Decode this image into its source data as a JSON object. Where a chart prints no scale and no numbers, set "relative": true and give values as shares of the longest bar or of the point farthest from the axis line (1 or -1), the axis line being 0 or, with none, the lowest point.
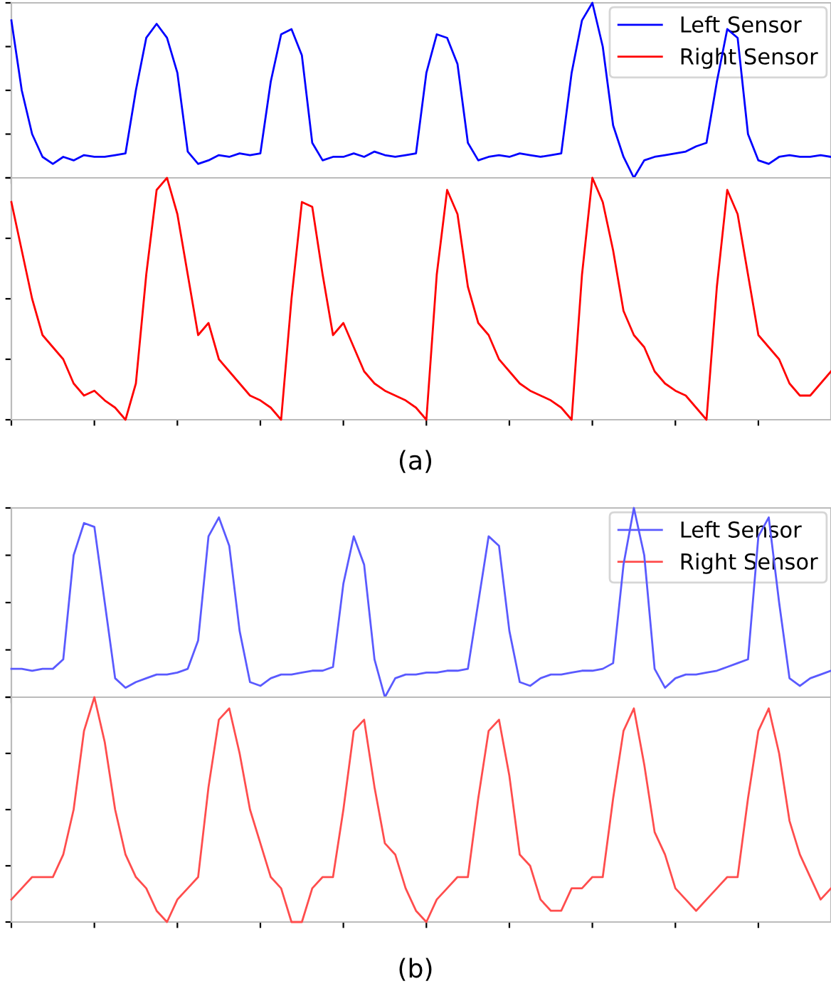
{
  "chart_data": [
    {
      "type": "line",
      "relative": true,
      "legend": "top right",
      "grid": false,
      "categories": [
        null,
        null,
        null,
        null,
        null,
        null,
        null,
        null,
        null,
        null,
        null,
        null,
        null,
        null,
        null,
        null,
        null,
        null,
        null,
        null,
        null,
        null,
        null,
        null,
        null,
        null,
        null,
        null,
        null,
        null,
        null,
        null,
        null,
        null,
        null,
        null,
        null,
        null,
        null,
        null,
        null,
        null,
        null,
        null,
        null,
        null,
        null,
        null,
        null,
        null,
        null,
        null,
        null,
        null,
        null,
        null,
        null,
        null,
        null,
        null,
        null,
        null,
        null,
        null,
        null,
        null,
        null,
        null,
        null,
        null,
        null,
        null,
        null,
        null,
        null,
        null,
        null,
        null,
        null,
        null
      ],
      "series": [
        {
          "name": "Left Sensor",
          "color": "#0000ff",
          "values": [
            0.9,
            0.5,
            0.25,
            0.12,
            0.08,
            0.12,
            0.1,
            0.13,
            0.12,
            0.12,
            0.13,
            0.14,
            0.5,
            0.8,
            0.88,
            0.8,
            0.6,
            0.15,
            0.08,
            0.1,
            0.13,
            0.12,
            0.14,
            0.13,
            0.14,
            0.55,
            0.82,
            0.85,
            0.7,
            0.2,
            0.1,
            0.12,
            0.12,
            0.14,
            0.12,
            0.15,
            0.13,
            0.12,
            0.13,
            0.14,
            0.6,
            0.82,
            0.8,
            0.65,
            0.2,
            0.1,
            0.12,
            0.13,
            0.12,
            0.14,
            0.13,
            0.12,
            0.13,
            0.14,
            0.6,
            0.9,
            1.0,
            0.75,
            0.3,
            0.12,
            0.0,
            0.1,
            0.12,
            0.13,
            0.14,
            0.15,
            0.18,
            0.2,
            0.55,
            0.85,
            0.8,
            0.25,
            0.1,
            0.08,
            0.12,
            0.13,
            0.12,
            0.12,
            0.13,
            0.12
          ]
        }
      ]
    },
    {
      "type": "line",
      "relative": true,
      "legend": "top",
      "grid": false,
      "annotations": [
        "(a)"
      ],
      "categories": [
        null,
        null,
        null,
        null,
        null,
        null,
        null,
        null,
        null,
        null,
        null,
        null,
        null,
        null,
        null,
        null,
        null,
        null,
        null,
        null,
        null,
        null,
        null,
        null,
        null,
        null,
        null,
        null,
        null,
        null,
        null,
        null,
        null,
        null,
        null,
        null,
        null,
        null,
        null,
        null,
        null,
        null,
        null,
        null,
        null,
        null,
        null,
        null,
        null,
        null,
        null,
        null,
        null,
        null,
        null,
        null,
        null,
        null,
        null,
        null,
        null,
        null,
        null,
        null,
        null,
        null,
        null,
        null,
        null,
        null,
        null,
        null,
        null,
        null,
        null,
        null,
        null,
        null,
        null,
        null
      ],
      "series": [
        {
          "name": "Right Sensor",
          "color": "#ff0000",
          "values": [
            0.9,
            0.7,
            0.5,
            0.35,
            0.3,
            0.25,
            0.15,
            0.1,
            0.12,
            0.08,
            0.05,
            0.0,
            0.15,
            0.6,
            0.95,
            1.0,
            0.85,
            0.6,
            0.35,
            0.4,
            0.25,
            0.2,
            0.15,
            0.1,
            0.08,
            0.05,
            0.0,
            0.5,
            0.9,
            0.88,
            0.6,
            0.35,
            0.4,
            0.3,
            0.2,
            0.15,
            0.12,
            0.1,
            0.08,
            0.05,
            0.0,
            0.6,
            0.95,
            0.85,
            0.55,
            0.4,
            0.35,
            0.25,
            0.2,
            0.15,
            0.12,
            0.1,
            0.08,
            0.05,
            0.0,
            0.6,
            1.0,
            0.9,
            0.7,
            0.45,
            0.35,
            0.3,
            0.2,
            0.15,
            0.12,
            0.1,
            0.05,
            0.0,
            0.55,
            0.95,
            0.85,
            0.6,
            0.35,
            0.3,
            0.25,
            0.15,
            0.1,
            0.1,
            0.15,
            0.2
          ]
        }
      ]
    },
    {
      "type": "line",
      "relative": true,
      "legend": "top right",
      "grid": false,
      "categories": [
        null,
        null,
        null,
        null,
        null,
        null,
        null,
        null,
        null,
        null,
        null,
        null,
        null,
        null,
        null,
        null,
        null,
        null,
        null,
        null,
        null,
        null,
        null,
        null,
        null,
        null,
        null,
        null,
        null,
        null,
        null,
        null,
        null,
        null,
        null,
        null,
        null,
        null,
        null,
        null,
        null,
        null,
        null,
        null,
        null,
        null,
        null,
        null,
        null,
        null,
        null,
        null,
        null,
        null,
        null,
        null,
        null,
        null,
        null,
        null,
        null,
        null,
        null,
        null,
        null,
        null,
        null,
        null,
        null,
        null,
        null,
        null,
        null,
        null,
        null,
        null,
        null,
        null,
        null,
        null
      ],
      "series": [
        {
          "name": "Left Sensor",
          "color": "#5a5aff",
          "values": [
            0.15,
            0.15,
            0.14,
            0.15,
            0.15,
            0.2,
            0.75,
            0.92,
            0.9,
            0.5,
            0.1,
            0.05,
            0.08,
            0.1,
            0.12,
            0.12,
            0.13,
            0.15,
            0.3,
            0.85,
            0.95,
            0.8,
            0.35,
            0.08,
            0.06,
            0.1,
            0.12,
            0.12,
            0.13,
            0.14,
            0.14,
            0.16,
            0.6,
            0.85,
            0.7,
            0.2,
            0.0,
            0.1,
            0.12,
            0.12,
            0.13,
            0.13,
            0.14,
            0.14,
            0.15,
            0.5,
            0.85,
            0.8,
            0.35,
            0.08,
            0.06,
            0.1,
            0.12,
            0.12,
            0.13,
            0.14,
            0.14,
            0.15,
            0.18,
            0.7,
            1.0,
            0.75,
            0.15,
            0.05,
            0.1,
            0.12,
            0.12,
            0.13,
            0.14,
            0.16,
            0.18,
            0.2,
            0.85,
            0.95,
            0.5,
            0.1,
            0.06,
            0.1,
            0.12,
            0.14
          ]
        }
      ]
    },
    {
      "type": "line",
      "relative": true,
      "legend": "top",
      "grid": false,
      "annotations": [
        "(b)"
      ],
      "categories": [
        null,
        null,
        null,
        null,
        null,
        null,
        null,
        null,
        null,
        null,
        null,
        null,
        null,
        null,
        null,
        null,
        null,
        null,
        null,
        null,
        null,
        null,
        null,
        null,
        null,
        null,
        null,
        null,
        null,
        null,
        null,
        null,
        null,
        null,
        null,
        null,
        null,
        null,
        null,
        null,
        null,
        null,
        null,
        null,
        null,
        null,
        null,
        null,
        null,
        null,
        null,
        null,
        null,
        null,
        null,
        null,
        null,
        null,
        null,
        null,
        null,
        null,
        null,
        null,
        null,
        null,
        null,
        null,
        null,
        null,
        null,
        null,
        null,
        null,
        null,
        null,
        null,
        null,
        null,
        null
      ],
      "series": [
        {
          "name": "Right Sensor",
          "color": "#ff4d4d",
          "values": [
            0.1,
            0.15,
            0.2,
            0.2,
            0.2,
            0.3,
            0.5,
            0.85,
            1.0,
            0.8,
            0.5,
            0.3,
            0.2,
            0.15,
            0.05,
            0.0,
            0.1,
            0.15,
            0.2,
            0.6,
            0.9,
            0.95,
            0.75,
            0.5,
            0.35,
            0.2,
            0.15,
            0.0,
            0.0,
            0.15,
            0.2,
            0.2,
            0.5,
            0.85,
            0.9,
            0.6,
            0.35,
            0.3,
            0.15,
            0.05,
            0.0,
            0.1,
            0.15,
            0.2,
            0.2,
            0.55,
            0.85,
            0.9,
            0.65,
            0.3,
            0.25,
            0.1,
            0.05,
            0.05,
            0.15,
            0.15,
            0.2,
            0.2,
            0.55,
            0.85,
            0.95,
            0.7,
            0.4,
            0.3,
            0.15,
            0.1,
            0.05,
            0.1,
            0.15,
            0.2,
            0.2,
            0.55,
            0.85,
            0.95,
            0.75,
            0.45,
            0.3,
            0.2,
            0.1,
            0.15
          ]
        }
      ]
    }
  ]
}
